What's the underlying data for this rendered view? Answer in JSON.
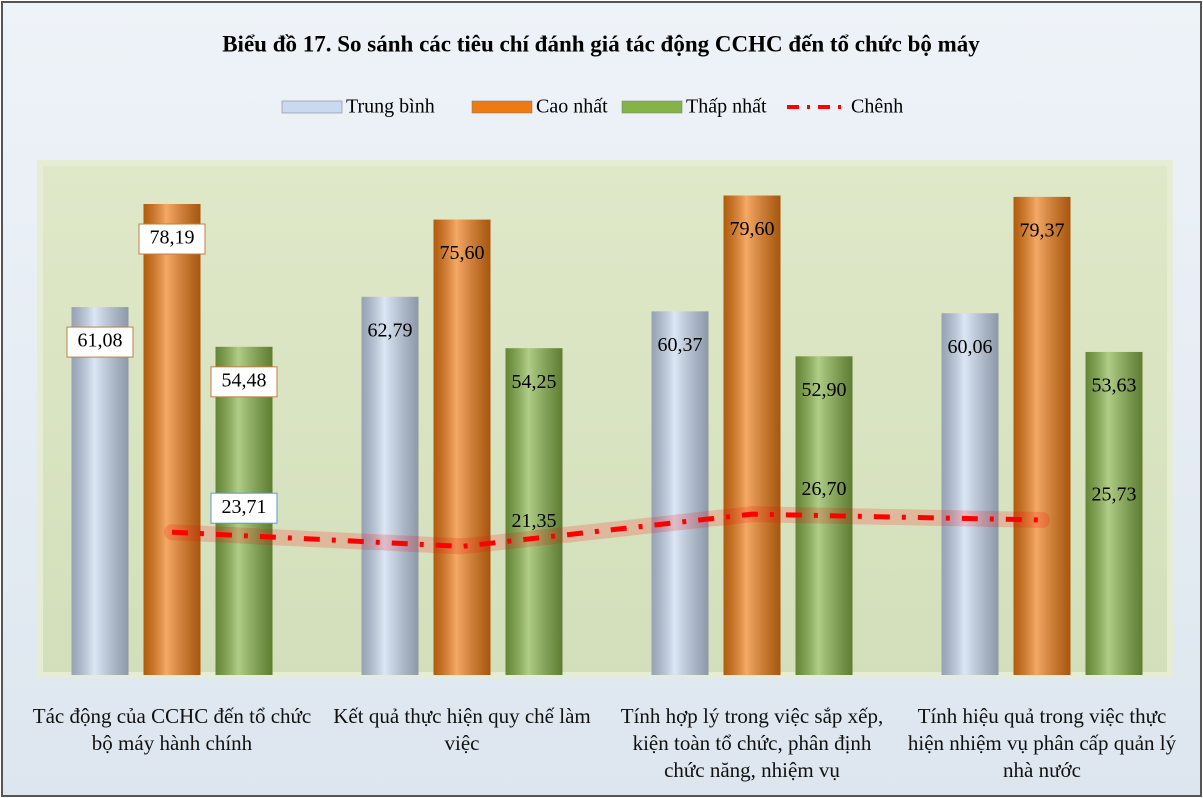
{
  "chart_data": {
    "type": "bar",
    "title": "Biểu đồ 17. So sánh các tiêu chí đánh giá tác động CCHC  đến tổ chức bộ máy",
    "categories": [
      "Tác động của CCHC  đến tổ chức bộ máy hành chính",
      "Kết quả thực hiện quy chế làm việc",
      "Tính hợp lý trong việc sắp xếp, kiện toàn tổ chức, phân định chức năng, nhiệm vụ",
      "Tính hiệu quả trong việc thực hiện nhiệm vụ phân cấp quản lý nhà nước"
    ],
    "series": [
      {
        "name": "Trung bình",
        "color": "#c9d9f0",
        "values": [
          61.08,
          62.79,
          60.37,
          60.06
        ],
        "value_labels": [
          "61,08",
          "62,79",
          "60,37",
          "60,06"
        ]
      },
      {
        "name": "Cao nhất",
        "color": "#ee7a12",
        "values": [
          78.19,
          75.6,
          79.6,
          79.37
        ],
        "value_labels": [
          "78,19",
          "75,60",
          "79,60",
          "79,37"
        ]
      },
      {
        "name": "Thấp nhất",
        "color": "#86b347",
        "values": [
          54.48,
          54.25,
          52.9,
          53.63
        ],
        "value_labels": [
          "54,48",
          "54,25",
          "52,90",
          "53,63"
        ]
      },
      {
        "name": "Chênh",
        "type": "line",
        "color": "#ff0000",
        "values": [
          23.71,
          21.35,
          26.7,
          25.73
        ],
        "value_labels": [
          "23,71",
          "21,35",
          "26,70",
          "25,73"
        ]
      }
    ],
    "ylim": [
      0,
      85
    ],
    "legend": "top"
  }
}
